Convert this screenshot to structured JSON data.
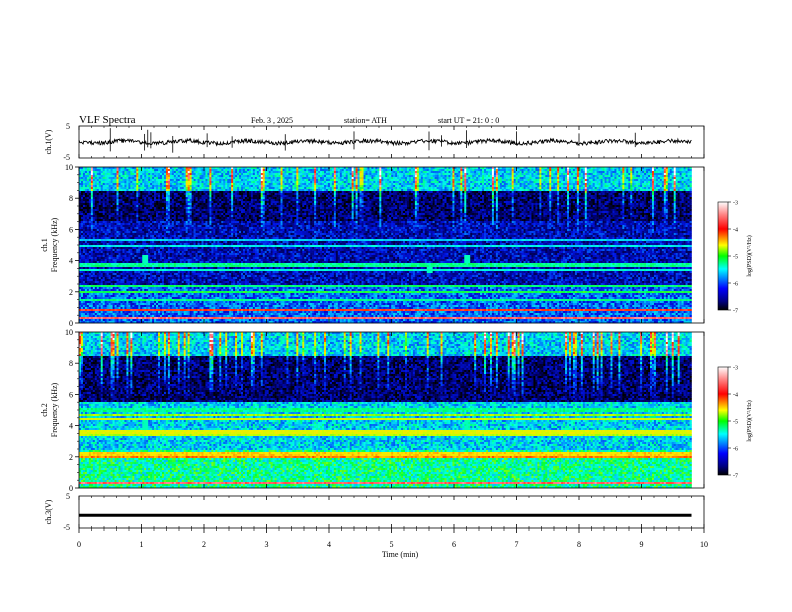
{
  "header": {
    "title": "VLF  Spectra",
    "date": "Feb. 3  , 2025",
    "station": "station= ATH",
    "start": "start  UT  =    21: 0   : 0"
  },
  "panels": {
    "ch1_wave_label": "ch.1(V)",
    "ch1_spec_label1": "ch.1",
    "ch1_spec_label2": "Frequency  (kHz)",
    "ch2_spec_label1": "ch.2",
    "ch2_spec_label2": "Frequency  (kHz)",
    "ch3_wave_label": "ch.3(V)"
  },
  "colorbar": {
    "label": "log(PSD)(V²/Hz)",
    "ticks": [
      "-3",
      "-4",
      "-5",
      "-6",
      "-7"
    ],
    "colors": [
      "#ffffff",
      "#ff4040",
      "#ff0000",
      "#ffff00",
      "#00ff00",
      "#00ffff",
      "#0000ff",
      "#000080",
      "#000000"
    ]
  },
  "chart_data": [
    {
      "type": "line",
      "name": "ch.1 waveform",
      "ylabel": "ch.1(V)",
      "ylim": [
        -5,
        5
      ],
      "yticks": [
        "5",
        "-5"
      ],
      "x_range_min": [
        0,
        10
      ],
      "data_span_min": 9.8,
      "baseline": 0,
      "spike_times_min": [
        0.5,
        1.05,
        1.1,
        1.15,
        1.5,
        2.05,
        2.45,
        3.3,
        4.4,
        5.6,
        5.8,
        6.2,
        7.0,
        8.0,
        8.9
      ]
    },
    {
      "type": "heatmap",
      "name": "ch.1 spectrogram",
      "ylabel": "Frequency  (kHz)",
      "ylim": [
        0,
        10
      ],
      "yticks": [
        "10",
        "8",
        "6",
        "4",
        "2",
        "0"
      ],
      "x_range_min": [
        0,
        10
      ],
      "data_span_min": 9.8,
      "bands_khz": [
        {
          "f": 0.3,
          "level": -3.3
        },
        {
          "f": 0.8,
          "level": -3.5
        },
        {
          "f": 1.5,
          "level": -5.0
        },
        {
          "f": 2.0,
          "level": -4.8
        },
        {
          "f": 2.4,
          "level": -4.9
        },
        {
          "f": 3.4,
          "level": -5.2
        },
        {
          "f": 3.7,
          "level": -5.0
        },
        {
          "f": 4.9,
          "level": -5.3
        },
        {
          "f": 5.3,
          "level": -5.4
        }
      ],
      "background": [
        {
          "fmin": 0,
          "fmax": 2.5,
          "level": -5.8
        },
        {
          "fmin": 2.5,
          "fmax": 6.5,
          "level": -6.3
        },
        {
          "fmin": 6.5,
          "fmax": 8.5,
          "level": -6.6
        },
        {
          "fmin": 8.5,
          "fmax": 10,
          "level": -5.4
        }
      ],
      "bursts": [
        {
          "t": 1.05,
          "fmin": 3.7,
          "fmax": 4.4
        },
        {
          "t": 6.2,
          "fmin": 3.7,
          "fmax": 4.4
        },
        {
          "t": 5.6,
          "fmin": 3.2,
          "fmax": 3.8
        }
      ]
    },
    {
      "type": "heatmap",
      "name": "ch.2 spectrogram",
      "ylabel": "Frequency  (kHz)",
      "ylim": [
        0,
        10
      ],
      "yticks": [
        "10",
        "8",
        "6",
        "4",
        "2",
        "0"
      ],
      "x_range_min": [
        0,
        10
      ],
      "data_span_min": 9.8,
      "bands_khz": [
        {
          "f": 0.3,
          "level": -3.3
        },
        {
          "f": 2.0,
          "level": -3.8
        },
        {
          "f": 2.2,
          "level": -4.0
        },
        {
          "f": 3.4,
          "level": -4.4
        },
        {
          "f": 3.6,
          "level": -4.2
        },
        {
          "f": 4.4,
          "level": -4.3
        },
        {
          "f": 4.7,
          "level": -4.5
        },
        {
          "f": 5.0,
          "level": -5.0
        }
      ],
      "background": [
        {
          "fmin": 0,
          "fmax": 2.5,
          "level": -5.0
        },
        {
          "fmin": 2.5,
          "fmax": 5.5,
          "level": -5.4
        },
        {
          "fmin": 5.5,
          "fmax": 8.5,
          "level": -6.6
        },
        {
          "fmin": 8.5,
          "fmax": 10,
          "level": -5.4
        }
      ],
      "bursts": [
        {
          "t": 1.05,
          "fmin": 3.7,
          "fmax": 4.4
        },
        {
          "t": 6.2,
          "fmin": 3.7,
          "fmax": 4.4
        }
      ]
    },
    {
      "type": "line",
      "name": "ch.3 waveform",
      "ylabel": "ch.3(V)",
      "ylim": [
        -5,
        5
      ],
      "yticks": [
        "5",
        "-5"
      ],
      "x_range_min": [
        0,
        10
      ],
      "data_span_min": 9.8,
      "baseline": -1
    }
  ],
  "xaxis": {
    "label": "Time  (min)",
    "ticks": [
      "0",
      "1",
      "2",
      "3",
      "4",
      "5",
      "6",
      "7",
      "8",
      "9",
      "10"
    ]
  }
}
